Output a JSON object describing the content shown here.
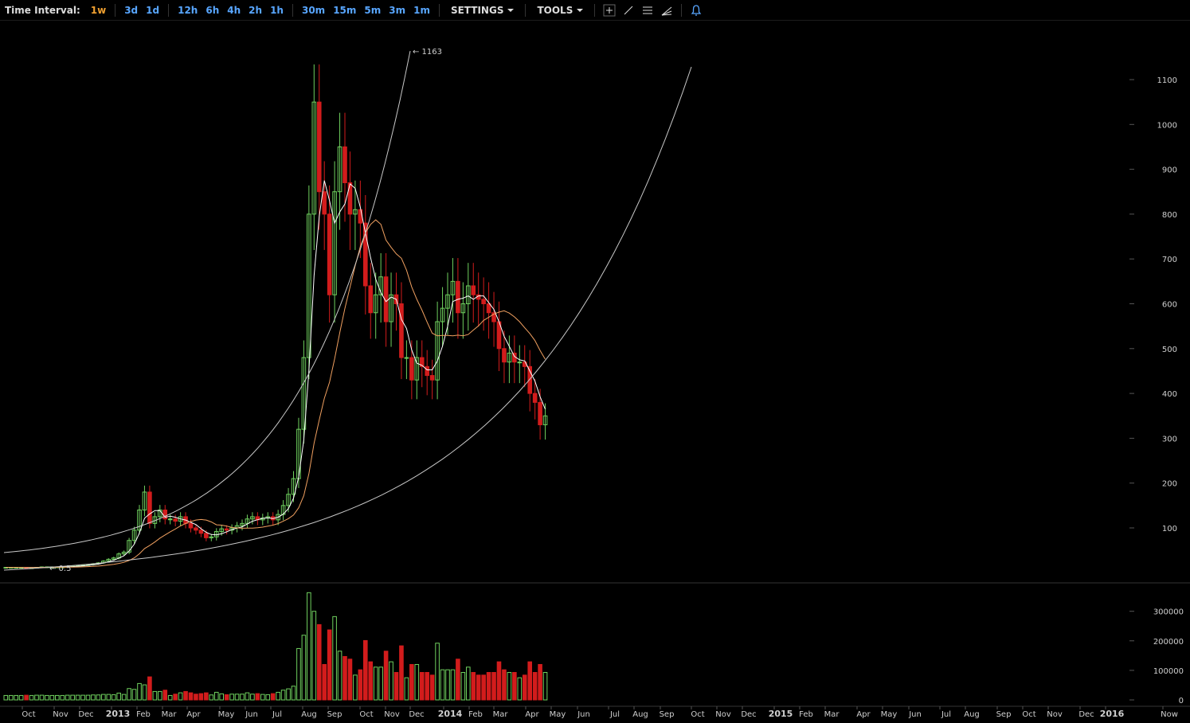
{
  "toolbar": {
    "time_interval_label": "Time Interval:",
    "intervals": [
      "1w",
      "3d",
      "1d",
      "12h",
      "6h",
      "4h",
      "2h",
      "1h",
      "30m",
      "15m",
      "5m",
      "3m",
      "1m"
    ],
    "active_interval": "1w",
    "settings_label": "SETTINGS",
    "tools_label": "TOOLS",
    "tool_icons": [
      "crosshair-icon",
      "line-icon",
      "horizontal-lines-icon",
      "fan-icon"
    ],
    "alert_icon": "bell-icon"
  },
  "colors": {
    "up": "#6fd05e",
    "down": "#d21c1c",
    "ma_fast": "#ffffff",
    "ma_slow": "#f0a060",
    "curve": "#c8c8c8",
    "accent": "#58a6ff",
    "active": "#f0a030"
  },
  "chart_data": {
    "type": "candlestick",
    "price_axis_ticks": [
      100,
      200,
      300,
      400,
      500,
      600,
      700,
      800,
      900,
      1000,
      1100
    ],
    "volume_axis_ticks": [
      0,
      100000,
      200000,
      300000
    ],
    "price_annotations": [
      {
        "text": "← 1163",
        "value": 1163
      },
      {
        "text": "← 0.5",
        "value": 0.5
      }
    ],
    "x_axis_labels": [
      {
        "t": "Oct",
        "bold": false
      },
      {
        "t": "Nov",
        "bold": false
      },
      {
        "t": "Dec",
        "bold": false
      },
      {
        "t": "2013",
        "bold": true
      },
      {
        "t": "Feb",
        "bold": false
      },
      {
        "t": "Mar",
        "bold": false
      },
      {
        "t": "Apr",
        "bold": false
      },
      {
        "t": "May",
        "bold": false
      },
      {
        "t": "Jun",
        "bold": false
      },
      {
        "t": "Jul",
        "bold": false
      },
      {
        "t": "Aug",
        "bold": false
      },
      {
        "t": "Sep",
        "bold": false
      },
      {
        "t": "Oct",
        "bold": false
      },
      {
        "t": "Nov",
        "bold": false
      },
      {
        "t": "Dec",
        "bold": false
      },
      {
        "t": "2014",
        "bold": true
      },
      {
        "t": "Feb",
        "bold": false
      },
      {
        "t": "Mar",
        "bold": false
      },
      {
        "t": "Apr",
        "bold": false
      },
      {
        "t": "May",
        "bold": false
      },
      {
        "t": "Jun",
        "bold": false
      },
      {
        "t": "Jul",
        "bold": false
      },
      {
        "t": "Aug",
        "bold": false
      },
      {
        "t": "Sep",
        "bold": false
      },
      {
        "t": "Oct",
        "bold": false
      },
      {
        "t": "Nov",
        "bold": false
      },
      {
        "t": "Dec",
        "bold": false
      },
      {
        "t": "2015",
        "bold": true
      },
      {
        "t": "Feb",
        "bold": false
      },
      {
        "t": "Mar",
        "bold": false
      },
      {
        "t": "Apr",
        "bold": false
      },
      {
        "t": "May",
        "bold": false
      },
      {
        "t": "Jun",
        "bold": false
      },
      {
        "t": "Jul",
        "bold": false
      },
      {
        "t": "Aug",
        "bold": false
      },
      {
        "t": "Sep",
        "bold": false
      },
      {
        "t": "Oct",
        "bold": false
      },
      {
        "t": "Nov",
        "bold": false
      },
      {
        "t": "Dec",
        "bold": false
      },
      {
        "t": "2016",
        "bold": true
      },
      {
        "t": "Now",
        "bold": false
      }
    ],
    "close_prices": [
      12,
      12,
      12,
      12,
      11,
      11,
      12,
      13,
      13,
      13,
      13,
      13,
      14,
      15,
      16,
      17,
      18,
      20,
      22,
      26,
      30,
      33,
      42,
      46,
      72,
      95,
      140,
      180,
      110,
      125,
      140,
      120,
      120,
      115,
      125,
      110,
      100,
      95,
      88,
      78,
      80,
      92,
      98,
      95,
      100,
      105,
      110,
      120,
      125,
      118,
      122,
      125,
      118,
      130,
      150,
      175,
      210,
      320,
      480,
      800,
      1050,
      850,
      800,
      620,
      850,
      950,
      870,
      800,
      810,
      780,
      640,
      580,
      620,
      660,
      560,
      620,
      600,
      480,
      480,
      430,
      480,
      460,
      440,
      430,
      560,
      590,
      620,
      650,
      580,
      600,
      640,
      620,
      610,
      600,
      580,
      560,
      500,
      470,
      490,
      470,
      470,
      460,
      400,
      380,
      330,
      350
    ]
  }
}
